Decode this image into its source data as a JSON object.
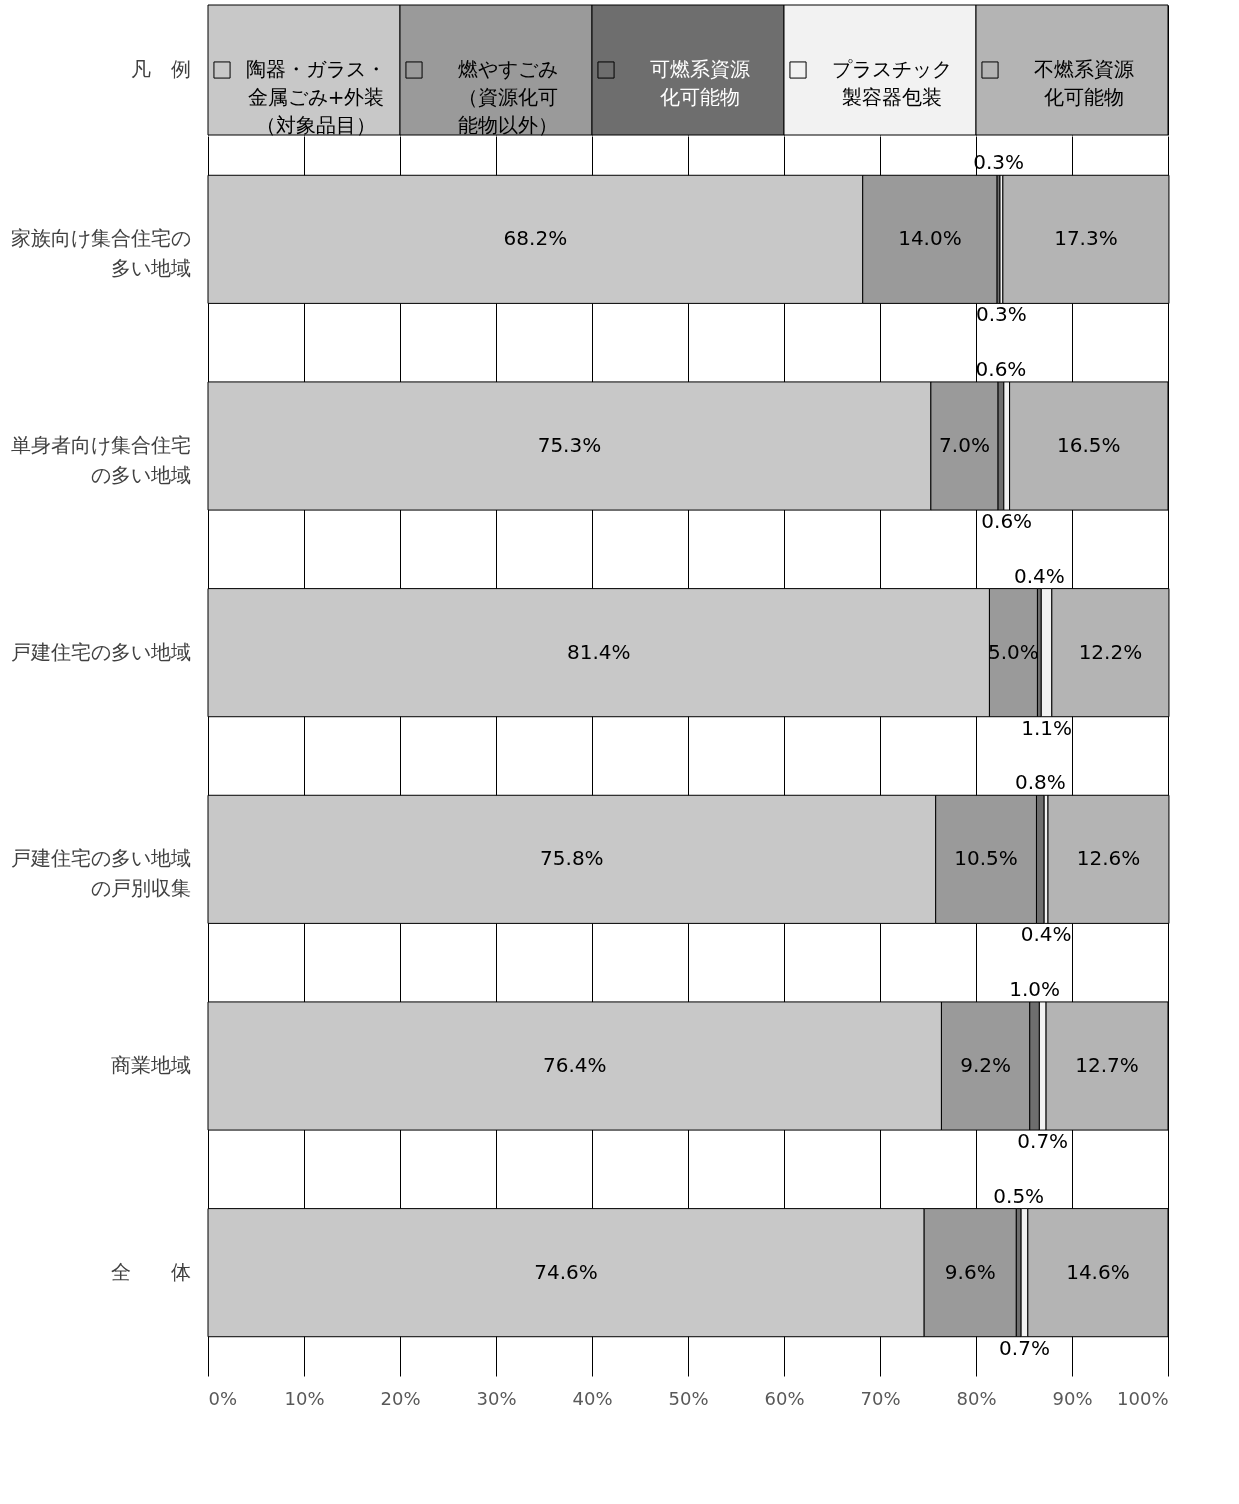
{
  "chart_data": {
    "type": "bar",
    "orientation": "horizontal",
    "stacked": true,
    "legend_title": "凡　例",
    "legend": "top",
    "categories": [
      "家族向け集合住宅の多い地域",
      "単身者向け集合住宅の多い地域",
      "戸建住宅の多い地域",
      "戸建住宅の多い地域の戸別収集",
      "商業地域",
      "全　　体"
    ],
    "series": [
      {
        "name": "陶器・ガラス・金属ごみ+外装（対象品目）",
        "color": "#c8c8c8",
        "values": [
          68.2,
          75.3,
          81.4,
          75.8,
          76.4,
          74.6
        ],
        "value_labels": [
          "68.2%",
          "75.3%",
          "81.4%",
          "75.8%",
          "76.4%",
          "74.6%"
        ]
      },
      {
        "name": "燃やすごみ（資源化可能物以外）",
        "color": "#9a9a9a",
        "values": [
          14.0,
          7.0,
          5.0,
          10.5,
          9.2,
          9.6
        ],
        "value_labels": [
          "14.0%",
          "7.0%",
          "5.0%",
          "10.5%",
          "9.2%",
          "9.6%"
        ]
      },
      {
        "name": "可燃系資源化可能物",
        "color": "#6e6e6e",
        "values": [
          0.3,
          0.6,
          0.4,
          0.8,
          1.0,
          0.5
        ],
        "value_labels": [
          "0.3%",
          "0.6%",
          "0.4%",
          "0.8%",
          "1.0%",
          "0.5%"
        ]
      },
      {
        "name": "プラスチック製容器包装",
        "color": "#f2f2f2",
        "values": [
          0.3,
          0.6,
          1.1,
          0.4,
          0.7,
          0.7
        ],
        "value_labels": [
          "0.3%",
          "0.6%",
          "1.1%",
          "0.4%",
          "0.7%",
          "0.7%"
        ]
      },
      {
        "name": "不燃系資源化可能物",
        "color": "#b4b4b4",
        "values": [
          17.3,
          16.5,
          12.2,
          12.6,
          12.7,
          14.6
        ],
        "value_labels": [
          "17.3%",
          "16.5%",
          "12.2%",
          "12.6%",
          "12.7%",
          "14.6%"
        ]
      }
    ],
    "xlim": [
      0,
      100
    ],
    "xticks": [
      {
        "value": 0,
        "label": "0%"
      },
      {
        "value": 10,
        "label": "10%"
      },
      {
        "value": 20,
        "label": "20%"
      },
      {
        "value": 30,
        "label": "30%"
      },
      {
        "value": 40,
        "label": "40%"
      },
      {
        "value": 50,
        "label": "50%"
      },
      {
        "value": 60,
        "label": "60%"
      },
      {
        "value": 70,
        "label": "70%"
      },
      {
        "value": 80,
        "label": "80%"
      },
      {
        "value": 90,
        "label": "90%"
      },
      {
        "value": 100,
        "label": "100%"
      }
    ],
    "grid": "x"
  }
}
